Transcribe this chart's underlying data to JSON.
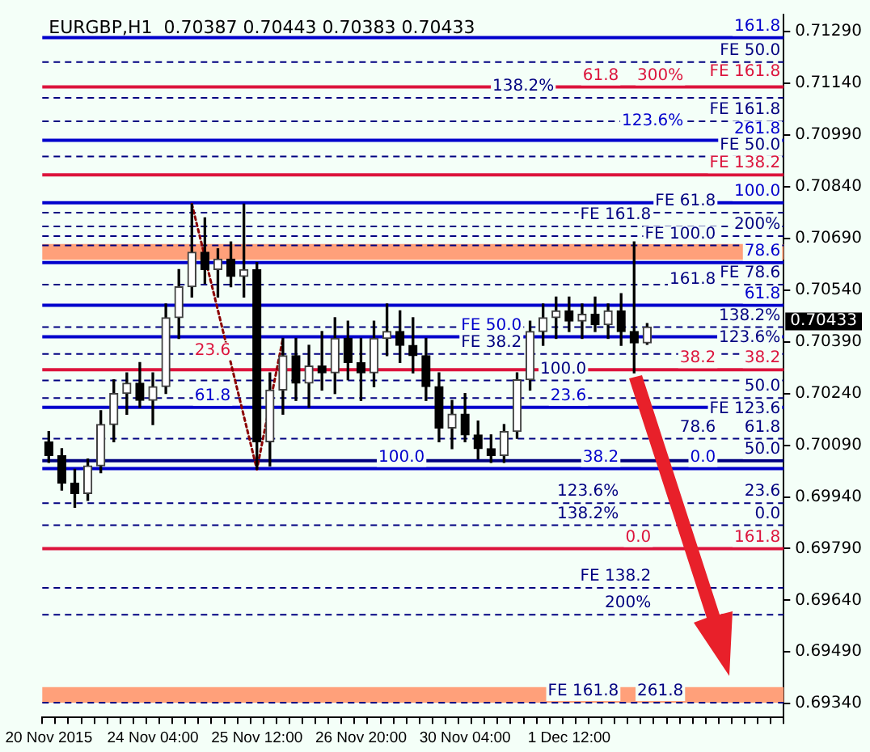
{
  "chart_data": {
    "type": "candlestick",
    "title": "EURGBP,H1  0.70387 0.70443 0.70383 0.70433",
    "categories": [
      "20 Nov 2015",
      null,
      null,
      null,
      null,
      null,
      null,
      null,
      "24 Nov 04:00",
      null,
      null,
      null,
      null,
      null,
      null,
      null,
      "25 Nov 12:00",
      null,
      null,
      null,
      null,
      null,
      null,
      null,
      "26 Nov 20:00",
      null,
      null,
      null,
      null,
      null,
      null,
      null,
      "30 Nov 04:00",
      null,
      null,
      null,
      null,
      null,
      null,
      null,
      "1 Dec 12:00",
      null,
      null,
      null,
      null,
      null,
      null,
      null,
      null,
      null,
      null,
      null,
      null,
      null,
      null,
      null,
      null
    ],
    "ohlc": [
      [
        0.701,
        0.7013,
        0.7004,
        0.7006
      ],
      [
        0.7006,
        0.7008,
        0.6996,
        0.6998
      ],
      [
        0.6998,
        0.7002,
        0.6991,
        0.6995
      ],
      [
        0.6995,
        0.7005,
        0.6993,
        0.7003
      ],
      [
        0.7003,
        0.7019,
        0.7001,
        0.7015
      ],
      [
        0.7015,
        0.7028,
        0.701,
        0.7024
      ],
      [
        0.7024,
        0.703,
        0.7018,
        0.7027
      ],
      [
        0.7027,
        0.7033,
        0.702,
        0.7022
      ],
      [
        0.7022,
        0.703,
        0.7015,
        0.7026
      ],
      [
        0.7026,
        0.705,
        0.7024,
        0.7046
      ],
      [
        0.7046,
        0.706,
        0.704,
        0.7055
      ],
      [
        0.7055,
        0.7079,
        0.7052,
        0.7065
      ],
      [
        0.7065,
        0.7075,
        0.7056,
        0.706
      ],
      [
        0.706,
        0.7066,
        0.7052,
        0.7063
      ],
      [
        0.7063,
        0.7068,
        0.7055,
        0.7058
      ],
      [
        0.7058,
        0.7079,
        0.7052,
        0.706
      ],
      [
        0.706,
        0.7062,
        0.7002,
        0.701
      ],
      [
        0.701,
        0.703,
        0.7003,
        0.7025
      ],
      [
        0.7025,
        0.704,
        0.7018,
        0.7035
      ],
      [
        0.7035,
        0.704,
        0.7022,
        0.7027
      ],
      [
        0.7027,
        0.7038,
        0.702,
        0.7032
      ],
      [
        0.7032,
        0.7042,
        0.7025,
        0.703
      ],
      [
        0.703,
        0.7046,
        0.7024,
        0.704
      ],
      [
        0.704,
        0.7045,
        0.7028,
        0.7033
      ],
      [
        0.7033,
        0.704,
        0.7022,
        0.703
      ],
      [
        0.703,
        0.7045,
        0.7026,
        0.704
      ],
      [
        0.704,
        0.705,
        0.7035,
        0.7042
      ],
      [
        0.7042,
        0.7048,
        0.7033,
        0.7038
      ],
      [
        0.7038,
        0.7046,
        0.703,
        0.7035
      ],
      [
        0.7035,
        0.704,
        0.7022,
        0.7026
      ],
      [
        0.7026,
        0.703,
        0.701,
        0.7014
      ],
      [
        0.7014,
        0.7022,
        0.7008,
        0.7018
      ],
      [
        0.7018,
        0.7024,
        0.701,
        0.7012
      ],
      [
        0.7012,
        0.7016,
        0.7005,
        0.7008
      ],
      [
        0.7008,
        0.7012,
        0.7004,
        0.7006
      ],
      [
        0.7006,
        0.7015,
        0.7004,
        0.7013
      ],
      [
        0.7013,
        0.703,
        0.7011,
        0.7028
      ],
      [
        0.7028,
        0.7045,
        0.7025,
        0.7042
      ],
      [
        0.7042,
        0.705,
        0.7038,
        0.7046
      ],
      [
        0.7046,
        0.7052,
        0.704,
        0.7048
      ],
      [
        0.7048,
        0.7052,
        0.7042,
        0.7045
      ],
      [
        0.7045,
        0.705,
        0.704,
        0.7047
      ],
      [
        0.7047,
        0.7052,
        0.7042,
        0.7044
      ],
      [
        0.7044,
        0.705,
        0.704,
        0.7048
      ],
      [
        0.7048,
        0.7053,
        0.7038,
        0.7042
      ],
      [
        0.7042,
        0.7068,
        0.703,
        0.70387
      ],
      [
        0.70387,
        0.70443,
        0.70383,
        0.70433
      ],
      null,
      null,
      null,
      null,
      null,
      null,
      null,
      null,
      null,
      null
    ],
    "series": [
      {
        "type": "line",
        "color": "#8b0000",
        "line_style": "dotted",
        "values": [
          null,
          null,
          null,
          null,
          null,
          null,
          null,
          null,
          null,
          null,
          null,
          0.7079,
          null,
          null,
          null,
          null,
          0.7002,
          null,
          0.704,
          null,
          null,
          null,
          null,
          null,
          null,
          null,
          null,
          null,
          null,
          null,
          null,
          null,
          null,
          null,
          null,
          null,
          null,
          null,
          null,
          null,
          null,
          null,
          null,
          null,
          null,
          null,
          null,
          null,
          null,
          null,
          null,
          null,
          null,
          null,
          null,
          null,
          null
        ]
      }
    ],
    "ylim": [
      0.693,
      0.7134
    ],
    "yticks": [
      {
        "value": 0.7129,
        "label": "0.71290"
      },
      {
        "value": 0.7114,
        "label": "0.71140"
      },
      {
        "value": 0.7099,
        "label": "0.70990"
      },
      {
        "value": 0.7084,
        "label": "0.70840"
      },
      {
        "value": 0.7069,
        "label": "0.70690"
      },
      {
        "value": 0.7054,
        "label": "0.70540"
      },
      {
        "value": 0.7039,
        "label": "0.70390"
      },
      {
        "value": 0.7024,
        "label": "0.70240"
      },
      {
        "value": 0.7009,
        "label": "0.70090"
      },
      {
        "value": 0.6994,
        "label": "0.69940"
      },
      {
        "value": 0.6979,
        "label": "0.69790"
      },
      {
        "value": 0.6964,
        "label": "0.69640"
      },
      {
        "value": 0.6949,
        "label": "0.69490"
      },
      {
        "value": 0.6934,
        "label": "0.69340"
      }
    ],
    "bands": [
      {
        "axis": "y",
        "from": 0.70628,
        "to": 0.70674,
        "color": "#ffa07a"
      },
      {
        "axis": "y",
        "from": 0.69343,
        "to": 0.69388,
        "color": "#ffa07a"
      }
    ],
    "ref_lines": [
      {
        "axis": "y",
        "value": 0.71273,
        "color": "#0000cc",
        "line_style": "solid"
      },
      {
        "axis": "y",
        "value": 0.71202,
        "color": "#000080",
        "line_style": "dashed"
      },
      {
        "axis": "y",
        "value": 0.7113,
        "color": "#dc143c",
        "line_style": "solid"
      },
      {
        "axis": "y",
        "value": 0.71098,
        "color": "#000080",
        "line_style": "dashed"
      },
      {
        "axis": "y",
        "value": 0.7103,
        "color": "#000080",
        "line_style": "dashed"
      },
      {
        "axis": "y",
        "value": 0.70975,
        "color": "#0000cc",
        "line_style": "solid"
      },
      {
        "axis": "y",
        "value": 0.70928,
        "color": "#000080",
        "line_style": "dashed"
      },
      {
        "axis": "y",
        "value": 0.70875,
        "color": "#dc143c",
        "line_style": "solid"
      },
      {
        "axis": "y",
        "value": 0.70794,
        "color": "#0000cc",
        "line_style": "solid"
      },
      {
        "axis": "y",
        "value": 0.70765,
        "color": "#000080",
        "line_style": "dashed"
      },
      {
        "axis": "y",
        "value": 0.70725,
        "color": "#000080",
        "line_style": "dashed"
      },
      {
        "axis": "y",
        "value": 0.70697,
        "color": "#000080",
        "line_style": "dashed"
      },
      {
        "axis": "y",
        "value": 0.7067,
        "color": "#000080",
        "line_style": "dashed"
      },
      {
        "axis": "y",
        "value": 0.7062,
        "color": "#0000cc",
        "line_style": "solid"
      },
      {
        "axis": "y",
        "value": 0.70556,
        "color": "#000080",
        "line_style": "dashed"
      },
      {
        "axis": "y",
        "value": 0.70496,
        "color": "#0000cc",
        "line_style": "solid"
      },
      {
        "axis": "y",
        "value": 0.70433,
        "color": "#000080",
        "line_style": "dashed"
      },
      {
        "axis": "y",
        "value": 0.70405,
        "color": "#0000cc",
        "line_style": "solid"
      },
      {
        "axis": "y",
        "value": 0.70355,
        "color": "#000080",
        "line_style": "dashed"
      },
      {
        "axis": "y",
        "value": 0.70309,
        "color": "#dc143c",
        "line_style": "solid"
      },
      {
        "axis": "y",
        "value": 0.70278,
        "color": "#000080",
        "line_style": "dashed"
      },
      {
        "axis": "y",
        "value": 0.70227,
        "color": "#000080",
        "line_style": "dashed"
      },
      {
        "axis": "y",
        "value": 0.702,
        "color": "#0000cc",
        "line_style": "solid"
      },
      {
        "axis": "y",
        "value": 0.70109,
        "color": "#000080",
        "line_style": "dashed"
      },
      {
        "axis": "y",
        "value": 0.70045,
        "color": "#000080",
        "line_style": "solid"
      },
      {
        "axis": "y",
        "value": 0.70022,
        "color": "#0000cc",
        "line_style": "solid"
      },
      {
        "axis": "y",
        "value": 0.69922,
        "color": "#000080",
        "line_style": "dashed"
      },
      {
        "axis": "y",
        "value": 0.69858,
        "color": "#000080",
        "line_style": "dashed"
      },
      {
        "axis": "y",
        "value": 0.6979,
        "color": "#dc143c",
        "line_style": "solid"
      },
      {
        "axis": "y",
        "value": 0.69676,
        "color": "#000080",
        "line_style": "dashed"
      },
      {
        "axis": "y",
        "value": 0.69598,
        "color": "#000080",
        "line_style": "dashed"
      },
      {
        "axis": "y",
        "value": 0.69343,
        "color": "#000080",
        "line_style": "dashed"
      }
    ],
    "annotations": [
      "0.70433",
      {
        "text": "161.8",
        "y": 0.71273
      },
      {
        "text": "FE 50.0",
        "y": 0.71202
      },
      {
        "text": "FE 161.8",
        "y": 0.71141
      },
      {
        "text": "300%",
        "y": 0.7113
      },
      {
        "text": "61.8",
        "y": 0.7113
      },
      {
        "text": "138.2%",
        "y": 0.71098
      },
      {
        "text": "FE 161.8",
        "y": 0.7103
      },
      {
        "text": "123.6%",
        "y": 0.70998
      },
      {
        "text": "261.8",
        "y": 0.70975
      },
      {
        "text": "FE 50.0",
        "y": 0.70928
      },
      {
        "text": "FE 138.2",
        "y": 0.70875
      },
      {
        "text": "100.0",
        "y": 0.70794
      },
      {
        "text": "FE 61.8",
        "y": 0.70765
      },
      {
        "text": "FE 161.8",
        "y": 0.70725
      },
      {
        "text": "200%",
        "y": 0.70697
      },
      {
        "text": "FE 100.0",
        "y": 0.7067
      },
      {
        "text": "78.6",
        "y": 0.7062
      },
      {
        "text": "FE 78.6",
        "y": 0.70556
      },
      {
        "text": "161.8",
        "y": 0.70538
      },
      {
        "text": "61.8",
        "y": 0.70496
      },
      {
        "text": "138.2%",
        "y": 0.70433
      },
      {
        "text": "FE 50.0",
        "y": 0.70405
      },
      {
        "text": "123.6%",
        "y": 0.70369
      },
      {
        "text": "FE 38.2",
        "y": 0.70355
      },
      {
        "text": "23.6",
        "y": 0.70332
      },
      {
        "text": "38.2",
        "y": 0.70309
      },
      {
        "text": "38.2",
        "y": 0.70309
      },
      {
        "text": "100.0",
        "y": 0.70278
      },
      {
        "text": "50.0",
        "y": 0.70227
      },
      {
        "text": "FE 123.6",
        "y": 0.70218
      },
      {
        "text": "23.6",
        "y": 0.702
      },
      {
        "text": "61.8",
        "y": 0.702
      },
      {
        "text": "61.8",
        "y": 0.70109
      },
      {
        "text": "78.6",
        "y": 0.70109
      },
      {
        "text": "50.0",
        "y": 0.70045
      },
      {
        "text": "38.2",
        "y": 0.70022
      },
      {
        "text": "100.0",
        "y": 0.70022
      },
      {
        "text": "0.0",
        "y": 0.70022
      },
      {
        "text": "23.6",
        "y": 0.69922
      },
      {
        "text": "123.6%",
        "y": 0.69922
      },
      {
        "text": "0.0",
        "y": 0.69858
      },
      {
        "text": "138.2%",
        "y": 0.69858
      },
      {
        "text": "161.8",
        "y": 0.6979
      },
      {
        "text": "0.0",
        "y": 0.6979
      },
      {
        "text": "FE 138.2",
        "y": 0.69676
      },
      {
        "text": "200%",
        "y": 0.69598
      },
      {
        "text": "261.8",
        "y": 0.69343
      },
      {
        "text": "FE 161.8",
        "y": 0.69343
      }
    ]
  }
}
